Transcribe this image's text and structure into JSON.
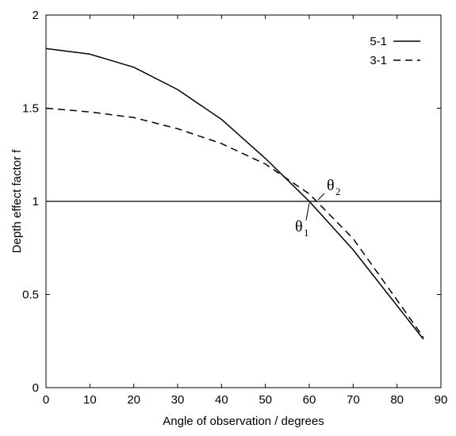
{
  "chart_data": {
    "type": "line",
    "xlabel": "Angle of observation / degrees",
    "ylabel": "Depth effect factor f",
    "xlim": [
      0,
      90
    ],
    "ylim": [
      0,
      2
    ],
    "xticks": [
      "0",
      "10",
      "20",
      "30",
      "40",
      "50",
      "60",
      "70",
      "80",
      "90"
    ],
    "yticks": [
      "0",
      "0.5",
      "1",
      "1.5",
      "2"
    ],
    "grid": false,
    "reference_line_y": 1,
    "legend_position": "top-right",
    "series": [
      {
        "name": "5-1",
        "style": "solid",
        "color": "#000000",
        "x": [
          0,
          10,
          20,
          30,
          40,
          50,
          60,
          70,
          86
        ],
        "y": [
          1.82,
          1.79,
          1.72,
          1.6,
          1.44,
          1.23,
          1.0,
          0.74,
          0.26
        ]
      },
      {
        "name": "3-1",
        "style": "dashed",
        "color": "#000000",
        "x": [
          0,
          10,
          20,
          30,
          40,
          50,
          60,
          70,
          80,
          86
        ],
        "y": [
          1.5,
          1.48,
          1.45,
          1.39,
          1.31,
          1.2,
          1.04,
          0.8,
          0.47,
          0.27
        ]
      }
    ],
    "annotations": [
      {
        "symbol": "θ",
        "subscript": "1",
        "x": 60,
        "y": 1.0
      },
      {
        "symbol": "θ",
        "subscript": "2",
        "x": 62,
        "y": 1.0
      }
    ]
  }
}
